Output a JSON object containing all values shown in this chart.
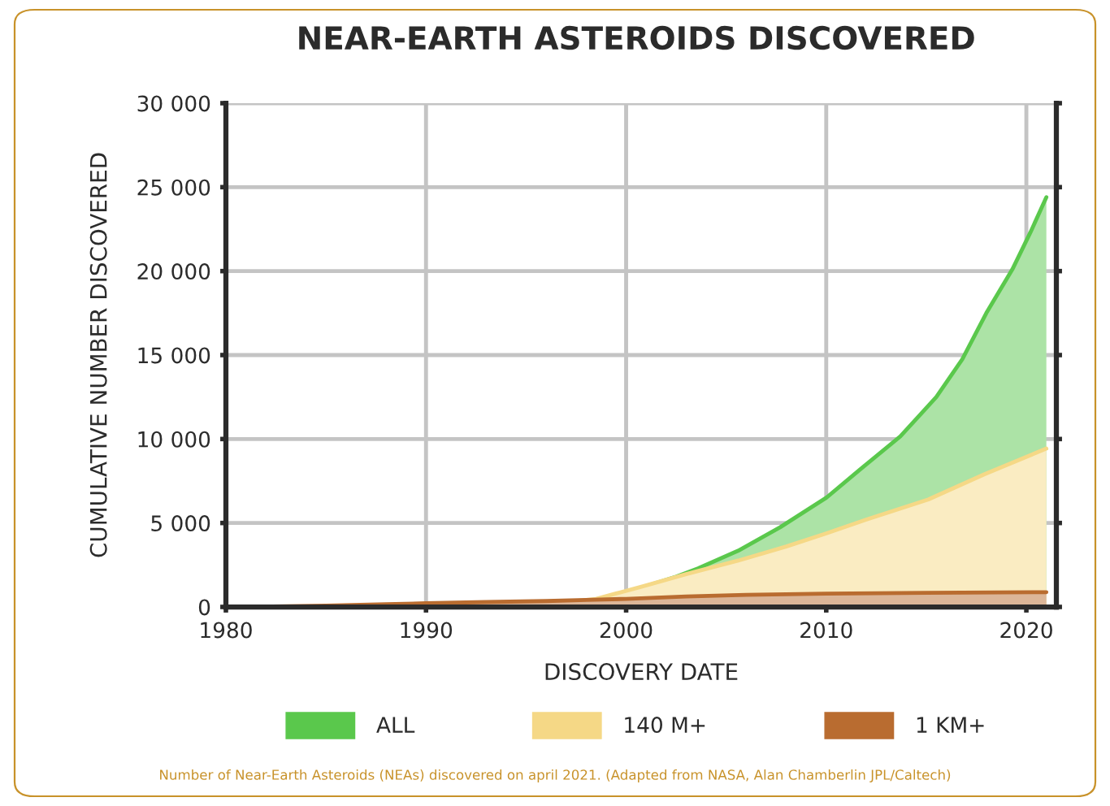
{
  "chart_data": {
    "type": "area",
    "title": "NEAR-EARTH ASTEROIDS DISCOVERED",
    "xlabel": "DISCOVERY DATE",
    "ylabel": "CUMULATIVE NUMBER DISCOVERED",
    "series": [
      {
        "name": "ALL",
        "color": "#5ac84c",
        "x": [
          2001.3,
          2002.5,
          2003.6,
          2005.6,
          2007.7,
          2010.0,
          2011.7,
          2013.7,
          2015.5,
          2016.8,
          2018.0,
          2019.3,
          2020.2,
          2021.0
        ],
        "values": [
          1350,
          1800,
          2300,
          3350,
          4750,
          6500,
          8200,
          10150,
          12500,
          14750,
          17500,
          20100,
          22300,
          24400
        ]
      },
      {
        "name": "140 M+",
        "color": "#f5d886",
        "x": [
          1997.0,
          1998.5,
          1999.5,
          2000.8,
          2003.0,
          2005.6,
          2008.0,
          2010.0,
          2012.0,
          2015.1,
          2017.9,
          2021.0
        ],
        "values": [
          300,
          480,
          800,
          1220,
          1950,
          2760,
          3600,
          4380,
          5200,
          6400,
          7900,
          9430
        ]
      },
      {
        "name": "1 KM+",
        "color": "#b96c30",
        "x": [
          1981.0,
          1985.0,
          1988.0,
          1990.0,
          1993.0,
          1996.0,
          1998.0,
          2000.0,
          2003.0,
          2006.0,
          2010.0,
          2015.0,
          2021.0
        ],
        "values": [
          0,
          80,
          160,
          220,
          290,
          350,
          420,
          480,
          620,
          720,
          790,
          840,
          880
        ]
      }
    ],
    "xlim": [
      1980,
      2021.5
    ],
    "xticks": [
      1980,
      1990,
      2000,
      2010,
      2020
    ],
    "ylim": [
      0,
      30000
    ],
    "yticks": [
      {
        "value": 0,
        "label": "0"
      },
      {
        "value": 5000,
        "label": "5 000"
      },
      {
        "value": 10000,
        "label": "10 000"
      },
      {
        "value": 15000,
        "label": "15 000"
      },
      {
        "value": 20000,
        "label": "20 000"
      },
      {
        "value": 25000,
        "label": "25 000"
      },
      {
        "value": 30000,
        "label": "30 000"
      }
    ],
    "grid": true,
    "legend": "bottom",
    "annotations": [
      "Number of Near-Earth Asteroids (NEAs) discovered on april 2021. (Adapted from NASA, Alan Chamberlin JPL/Caltech)"
    ]
  }
}
